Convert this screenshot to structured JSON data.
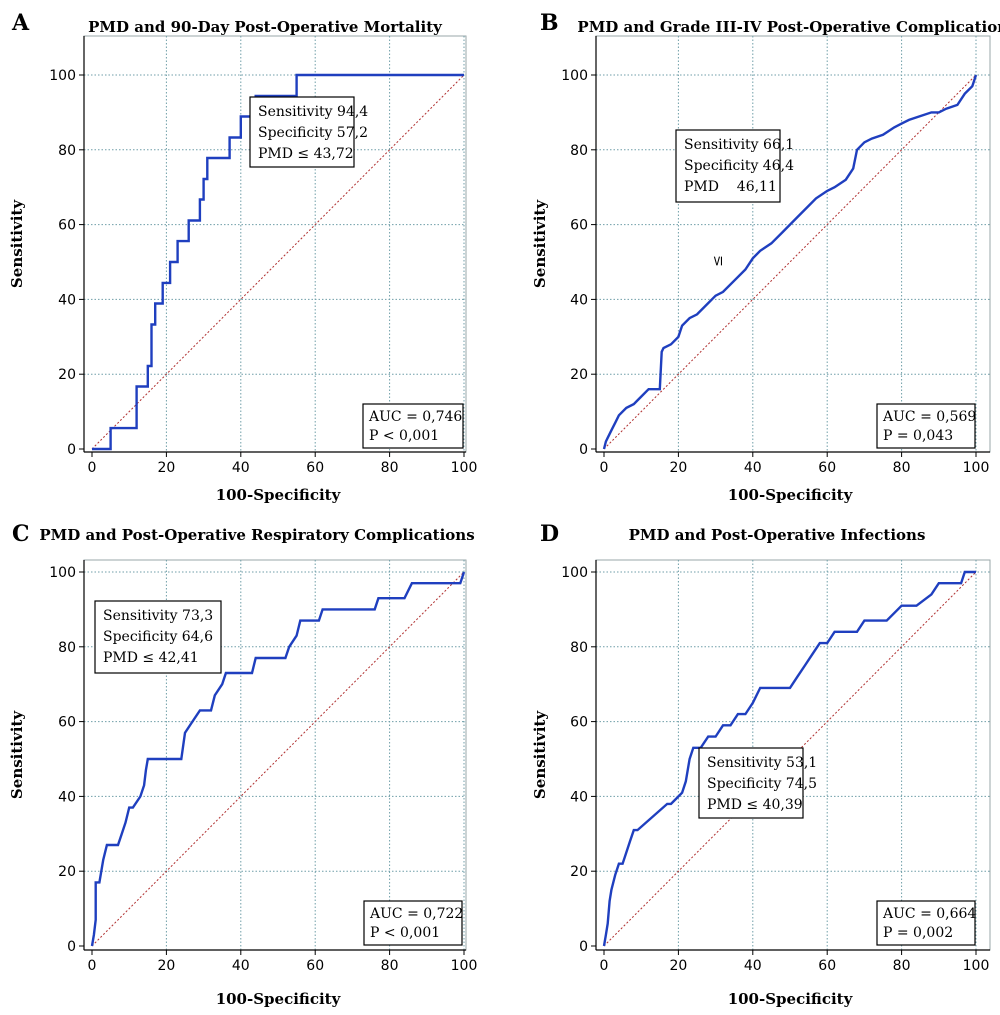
{
  "chart_data": [
    {
      "type": "line",
      "panel_letter": "A",
      "title": "PMD and 90-Day Post-Operative Mortality",
      "xlabel": "100-Specificity",
      "ylabel": "Sensitivity",
      "xlim": [
        0,
        100
      ],
      "ylim": [
        0,
        100
      ],
      "xticks": [
        0,
        20,
        40,
        60,
        80,
        100
      ],
      "yticks": [
        0,
        20,
        40,
        60,
        80,
        100
      ],
      "grid": true,
      "roc_x": [
        0,
        5,
        5,
        12,
        12,
        15,
        15,
        16,
        16,
        17,
        17,
        19,
        19,
        21,
        21,
        23,
        23,
        26,
        26,
        29,
        29,
        30,
        30,
        31,
        31,
        37,
        37,
        40,
        40,
        44,
        44,
        55,
        55,
        100
      ],
      "roc_y": [
        0,
        0,
        5.6,
        5.6,
        16.7,
        16.7,
        22.2,
        22.2,
        33.3,
        33.3,
        38.9,
        38.9,
        44.4,
        44.4,
        50,
        50,
        55.6,
        55.6,
        61.1,
        61.1,
        66.7,
        66.7,
        72.2,
        72.2,
        77.8,
        77.8,
        83.3,
        83.3,
        88.9,
        88.9,
        94.4,
        94.4,
        100,
        100
      ],
      "cutoff_lines": [
        "Sensitivity 94,4",
        "Specificity 57,2",
        "PMD ≤ 43,72"
      ],
      "cutoff_box_pos": "top-center",
      "stats_lines": [
        "AUC = 0,746",
        "P < 0,001"
      ]
    },
    {
      "type": "line",
      "panel_letter": "B",
      "title": "PMD and Grade III-IV Post-Operative Complications",
      "xlabel": "100-Specificity",
      "ylabel": "Sensitivity",
      "xlim": [
        0,
        100
      ],
      "ylim": [
        0,
        100
      ],
      "xticks": [
        0,
        20,
        40,
        60,
        80,
        100
      ],
      "yticks": [
        0,
        20,
        40,
        60,
        80,
        100
      ],
      "grid": true,
      "roc_x": [
        0,
        0.5,
        1,
        2,
        3,
        4,
        6,
        8,
        10,
        12,
        15,
        15.5,
        16,
        18,
        20,
        21,
        23,
        25,
        28,
        30,
        32,
        35,
        38,
        40,
        42,
        45,
        48,
        50,
        52,
        55,
        57,
        60,
        62,
        65,
        67,
        68,
        70,
        72,
        75,
        78,
        80,
        82,
        85,
        88,
        90,
        92,
        95,
        97,
        99,
        100
      ],
      "roc_y": [
        0,
        2,
        3,
        5,
        7,
        9,
        11,
        12,
        14,
        16,
        16,
        26,
        27,
        28,
        30,
        33,
        35,
        36,
        39,
        41,
        42,
        45,
        48,
        51,
        53,
        55,
        58,
        60,
        62,
        65,
        67,
        69,
        70,
        72,
        75,
        80,
        82,
        83,
        84,
        86,
        87,
        88,
        89,
        90,
        90,
        91,
        92,
        95,
        97,
        100
      ],
      "cutoff_lines": [
        "Sensitivity 66,1",
        "Specificity 46,4",
        "PMD    46,11"
      ],
      "cutoff_box_pos": "top-left",
      "stray_symbol": "≤",
      "stats_lines": [
        "AUC = 0,569",
        "P = 0,043"
      ]
    },
    {
      "type": "line",
      "panel_letter": "C",
      "title": "PMD and Post-Operative Respiratory Complications",
      "xlabel": "100-Specificity",
      "ylabel": "Sensitivity",
      "xlim": [
        0,
        100
      ],
      "ylim": [
        0,
        100
      ],
      "xticks": [
        0,
        20,
        40,
        60,
        80,
        100
      ],
      "yticks": [
        0,
        20,
        40,
        60,
        80,
        100
      ],
      "grid": true,
      "roc_x": [
        0,
        0.5,
        1,
        1,
        2,
        3,
        4,
        7,
        8,
        9,
        10,
        11,
        13,
        14,
        14.5,
        15,
        24,
        25,
        27,
        29,
        32,
        33,
        35,
        36,
        43,
        44,
        52,
        53,
        55,
        56,
        61,
        62,
        67,
        76,
        77,
        84,
        86,
        99,
        100
      ],
      "roc_y": [
        0,
        3,
        7,
        17,
        17,
        23,
        27,
        27,
        30,
        33,
        37,
        37,
        40,
        43,
        47,
        50,
        50,
        57,
        60,
        63,
        63,
        67,
        70,
        73,
        73,
        77,
        77,
        80,
        83,
        87,
        87,
        90,
        90,
        90,
        93,
        93,
        97,
        97,
        100
      ],
      "cutoff_lines": [
        "Sensitivity 73,3",
        "Specificity 64,6",
        "PMD ≤ 42,41"
      ],
      "cutoff_box_pos": "top-left",
      "stats_lines": [
        "AUC = 0,722",
        "P < 0,001"
      ]
    },
    {
      "type": "line",
      "panel_letter": "D",
      "title": "PMD and Post-Operative Infections",
      "xlabel": "100-Specificity",
      "ylabel": "Sensitivity",
      "xlim": [
        0,
        100
      ],
      "ylim": [
        0,
        100
      ],
      "xticks": [
        0,
        20,
        40,
        60,
        80,
        100
      ],
      "yticks": [
        0,
        20,
        40,
        60,
        80,
        100
      ],
      "grid": true,
      "roc_x": [
        0,
        0.5,
        1,
        1.5,
        2,
        3,
        4,
        5,
        6,
        7,
        8,
        9,
        17,
        18,
        21,
        22,
        23,
        24,
        26,
        28,
        30,
        32,
        34,
        36,
        38,
        40,
        42,
        50,
        52,
        54,
        56,
        58,
        60,
        62,
        68,
        70,
        76,
        80,
        84,
        88,
        90,
        96,
        97,
        100
      ],
      "roc_y": [
        0,
        3,
        6,
        12,
        15,
        19,
        22,
        22,
        25,
        28,
        31,
        31,
        38,
        38,
        41,
        44,
        50,
        53,
        53,
        56,
        56,
        59,
        59,
        62,
        62,
        65,
        69,
        69,
        72,
        75,
        78,
        81,
        81,
        84,
        84,
        87,
        87,
        91,
        91,
        94,
        97,
        97,
        100,
        100
      ],
      "cutoff_lines": [
        "Sensitivity 53,1",
        "Specificity 74,5",
        "PMD ≤ 40,39"
      ],
      "cutoff_box_pos": "center",
      "stats_lines": [
        "AUC = 0,664",
        "P = 0,002"
      ]
    }
  ],
  "style": {
    "roc_color": "#1f3fbf",
    "diagonal_color": "#b03030",
    "grid_color": "#6f9ea8",
    "axis_color": "#000000"
  }
}
